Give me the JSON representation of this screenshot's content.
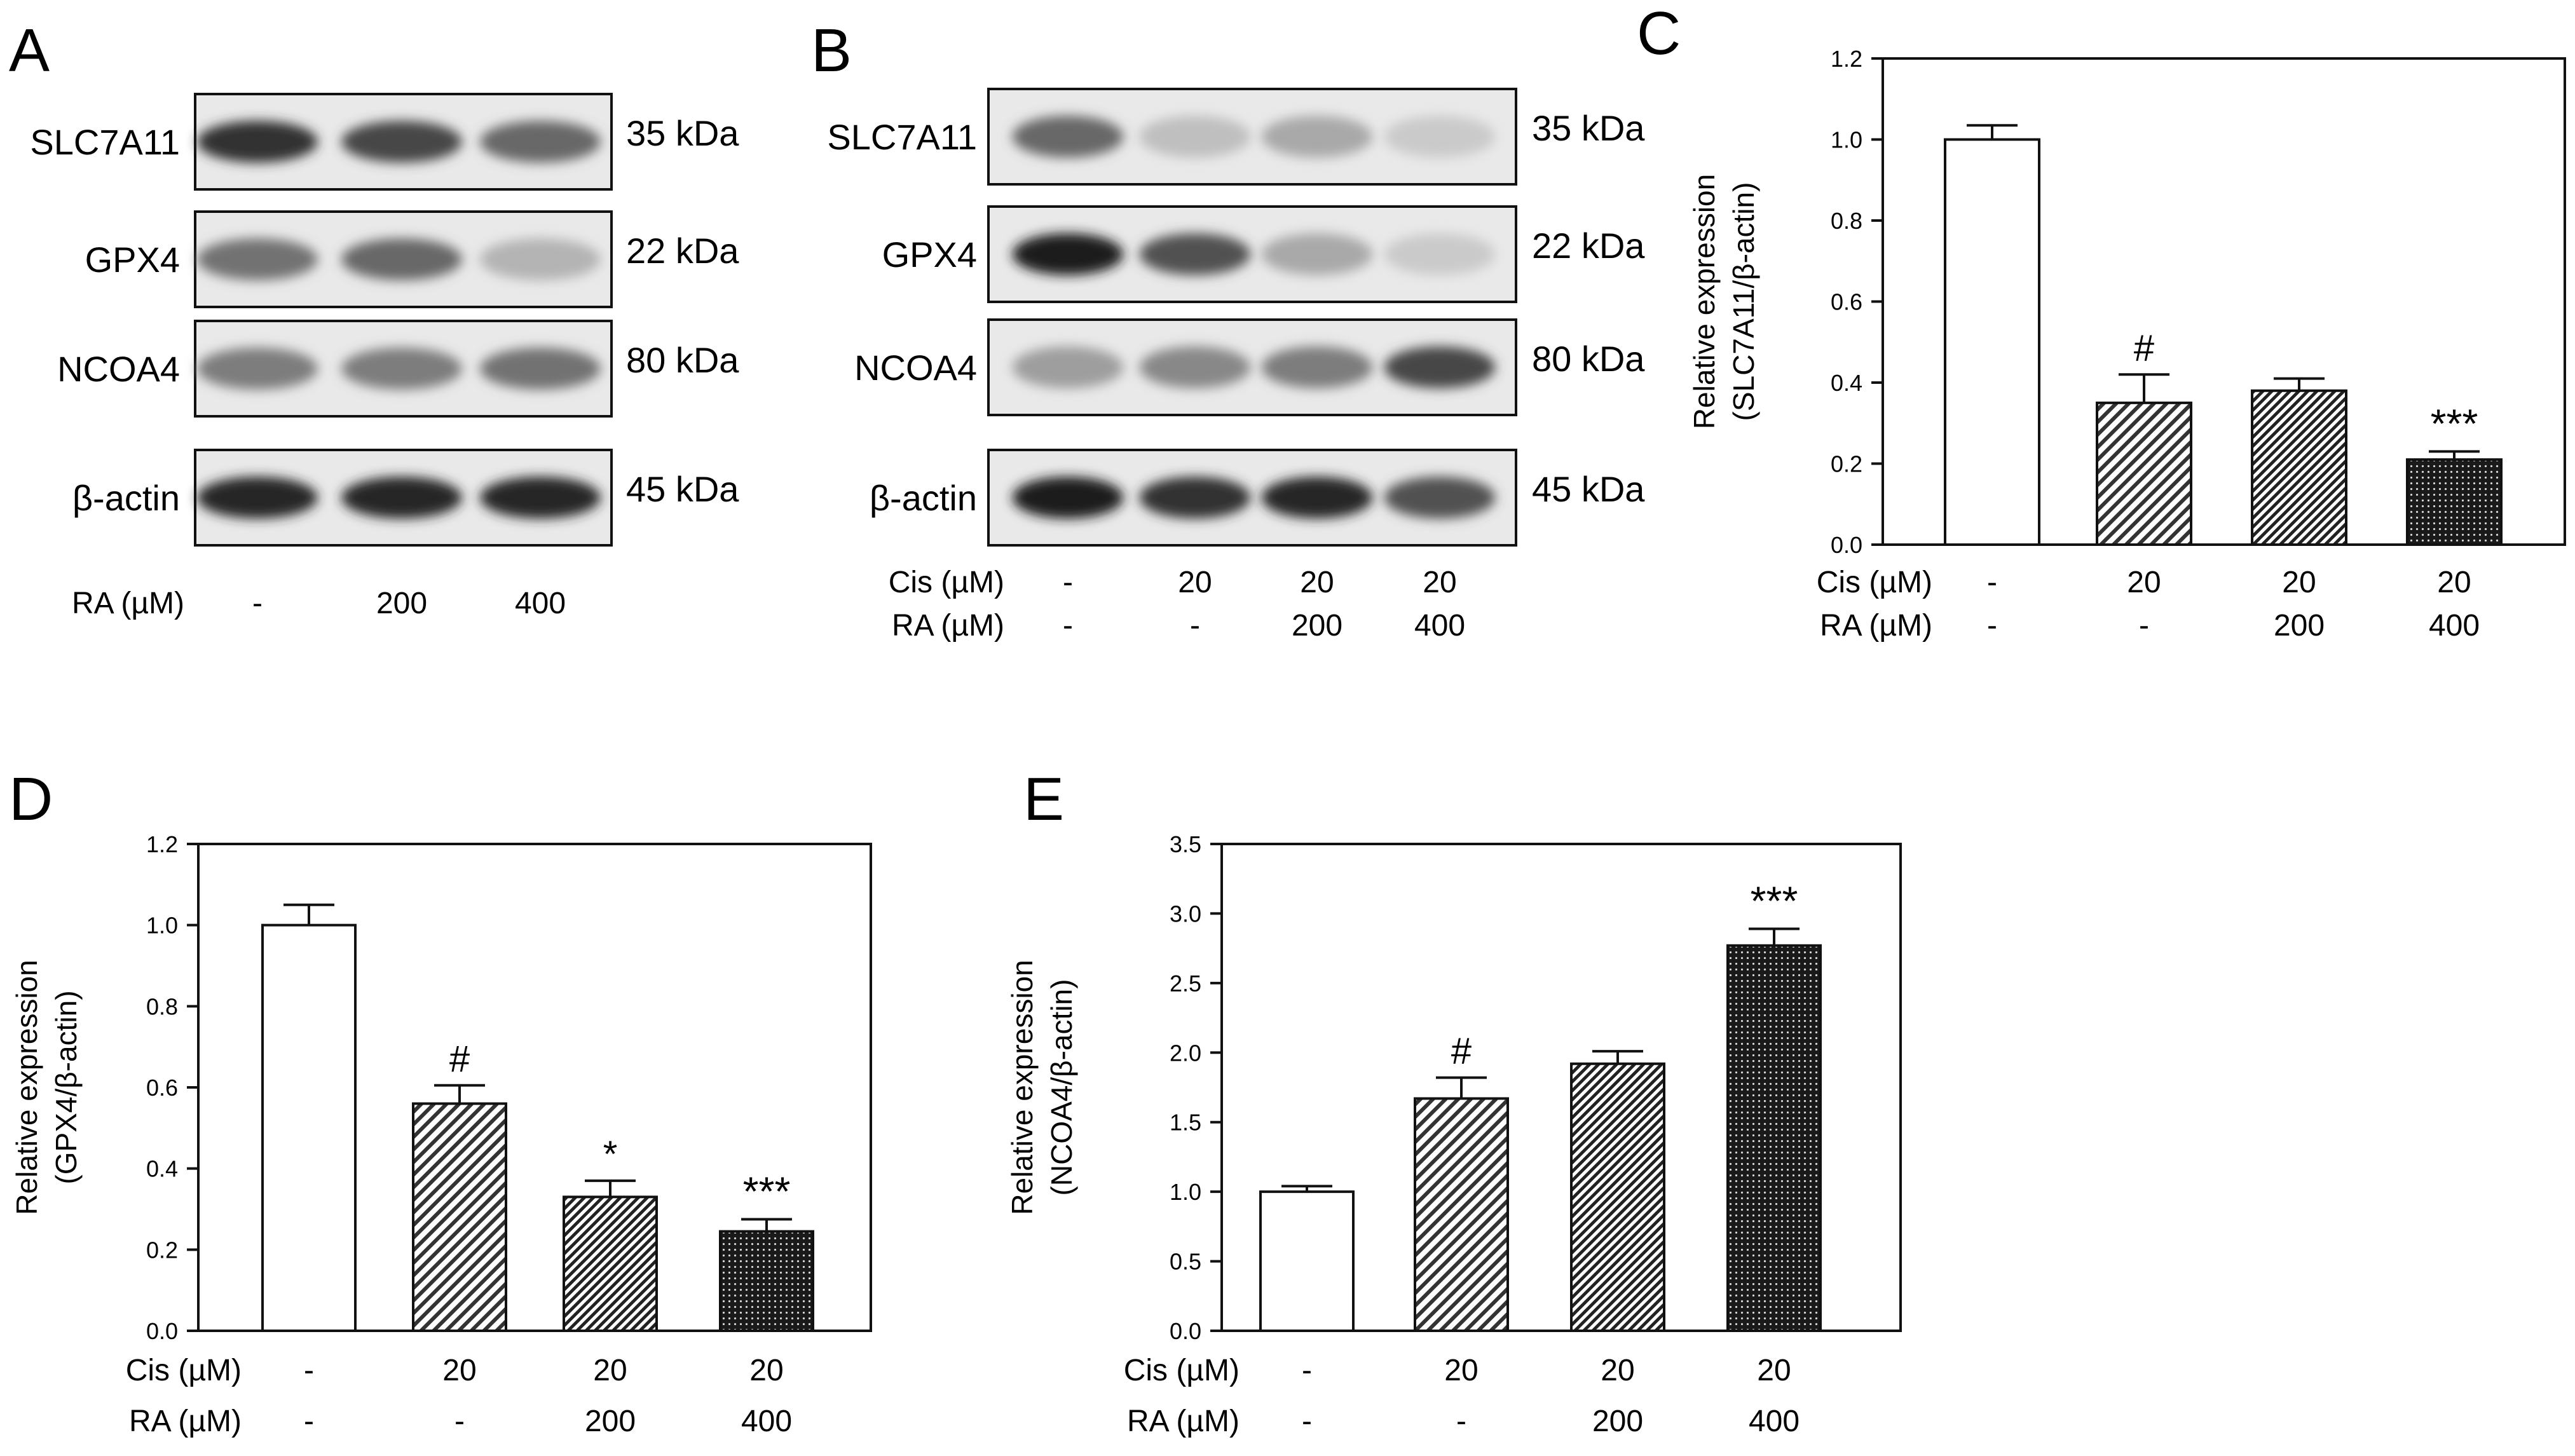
{
  "panels": {
    "A": {
      "letter": "A",
      "bands": [
        {
          "label": "SLC7A11",
          "kda": "35 kDa",
          "intensity": [
            0.85,
            0.75,
            0.6
          ]
        },
        {
          "label": "GPX4",
          "kda": "22 kDa",
          "intensity": [
            0.55,
            0.6,
            0.25
          ]
        },
        {
          "label": "NCOA4",
          "kda": "80 kDa",
          "intensity": [
            0.5,
            0.5,
            0.55
          ]
        },
        {
          "label": "β-actin",
          "kda": "45 kDa",
          "intensity": [
            0.9,
            0.9,
            0.9
          ]
        }
      ],
      "conditions": [
        {
          "label": "RA (µM)",
          "values": [
            "-",
            "200",
            "400"
          ]
        }
      ]
    },
    "B": {
      "letter": "B",
      "bands": [
        {
          "label": "SLC7A11",
          "kda": "35 kDa",
          "intensity": [
            0.6,
            0.2,
            0.3,
            0.15
          ]
        },
        {
          "label": "GPX4",
          "kda": "22 kDa",
          "intensity": [
            0.95,
            0.7,
            0.3,
            0.15
          ]
        },
        {
          "label": "NCOA4",
          "kda": "80 kDa",
          "intensity": [
            0.35,
            0.45,
            0.5,
            0.75
          ]
        },
        {
          "label": "β-actin",
          "kda": "45 kDa",
          "intensity": [
            0.95,
            0.85,
            0.9,
            0.7
          ]
        }
      ],
      "conditions": [
        {
          "label": "Cis (µM)",
          "values": [
            "-",
            "20",
            "20",
            "20"
          ]
        },
        {
          "label": "RA (µM)",
          "values": [
            "-",
            "-",
            "200",
            "400"
          ]
        }
      ]
    }
  },
  "chart_data": [
    {
      "panel": "C",
      "type": "bar",
      "categories": [
        "1",
        "2",
        "3",
        "4"
      ],
      "values": [
        1.0,
        0.35,
        0.38,
        0.21
      ],
      "errors": [
        0.035,
        0.07,
        0.03,
        0.02
      ],
      "annotations": [
        "",
        "#",
        "",
        "***"
      ],
      "patterns": [
        "blank",
        "hatch-light",
        "hatch-dense",
        "dots"
      ],
      "ylabel": [
        "Relative expression",
        "(SLC7A11/β-actin)"
      ],
      "ylim": [
        0,
        1.2
      ],
      "yticks": [
        "0.0",
        "0.2",
        "0.4",
        "0.6",
        "0.8",
        "1.0",
        "1.2"
      ],
      "conditions": [
        {
          "label": "Cis (µM)",
          "values": [
            "-",
            "20",
            "20",
            "20"
          ]
        },
        {
          "label": "RA (µM)",
          "values": [
            "-",
            "-",
            "200",
            "400"
          ]
        }
      ]
    },
    {
      "panel": "D",
      "type": "bar",
      "categories": [
        "1",
        "2",
        "3",
        "4"
      ],
      "values": [
        1.0,
        0.56,
        0.33,
        0.245
      ],
      "errors": [
        0.05,
        0.045,
        0.04,
        0.03
      ],
      "annotations": [
        "",
        "#",
        "*",
        "***"
      ],
      "patterns": [
        "blank",
        "hatch-light",
        "hatch-dense",
        "dots"
      ],
      "ylabel": [
        "Relative expression",
        "(GPX4/β-actin)"
      ],
      "ylim": [
        0,
        1.2
      ],
      "yticks": [
        "0.0",
        "0.2",
        "0.4",
        "0.6",
        "0.8",
        "1.0",
        "1.2"
      ],
      "conditions": [
        {
          "label": "Cis (µM)",
          "values": [
            "-",
            "20",
            "20",
            "20"
          ]
        },
        {
          "label": "RA (µM)",
          "values": [
            "-",
            "-",
            "200",
            "400"
          ]
        }
      ]
    },
    {
      "panel": "E",
      "type": "bar",
      "categories": [
        "1",
        "2",
        "3",
        "4"
      ],
      "values": [
        1.0,
        1.67,
        1.92,
        2.77
      ],
      "errors": [
        0.04,
        0.15,
        0.09,
        0.12
      ],
      "annotations": [
        "",
        "#",
        "",
        "***"
      ],
      "patterns": [
        "blank",
        "hatch-light",
        "hatch-dense",
        "dots"
      ],
      "ylabel": [
        "Relative expression",
        "(NCOA4/β-actin)"
      ],
      "ylim": [
        0,
        3.5
      ],
      "yticks": [
        "0.0",
        "0.5",
        "1.0",
        "1.5",
        "2.0",
        "2.5",
        "3.0",
        "3.5"
      ],
      "conditions": [
        {
          "label": "Cis (µM)",
          "values": [
            "-",
            "20",
            "20",
            "20"
          ]
        },
        {
          "label": "RA (µM)",
          "values": [
            "-",
            "-",
            "200",
            "400"
          ]
        }
      ]
    }
  ]
}
